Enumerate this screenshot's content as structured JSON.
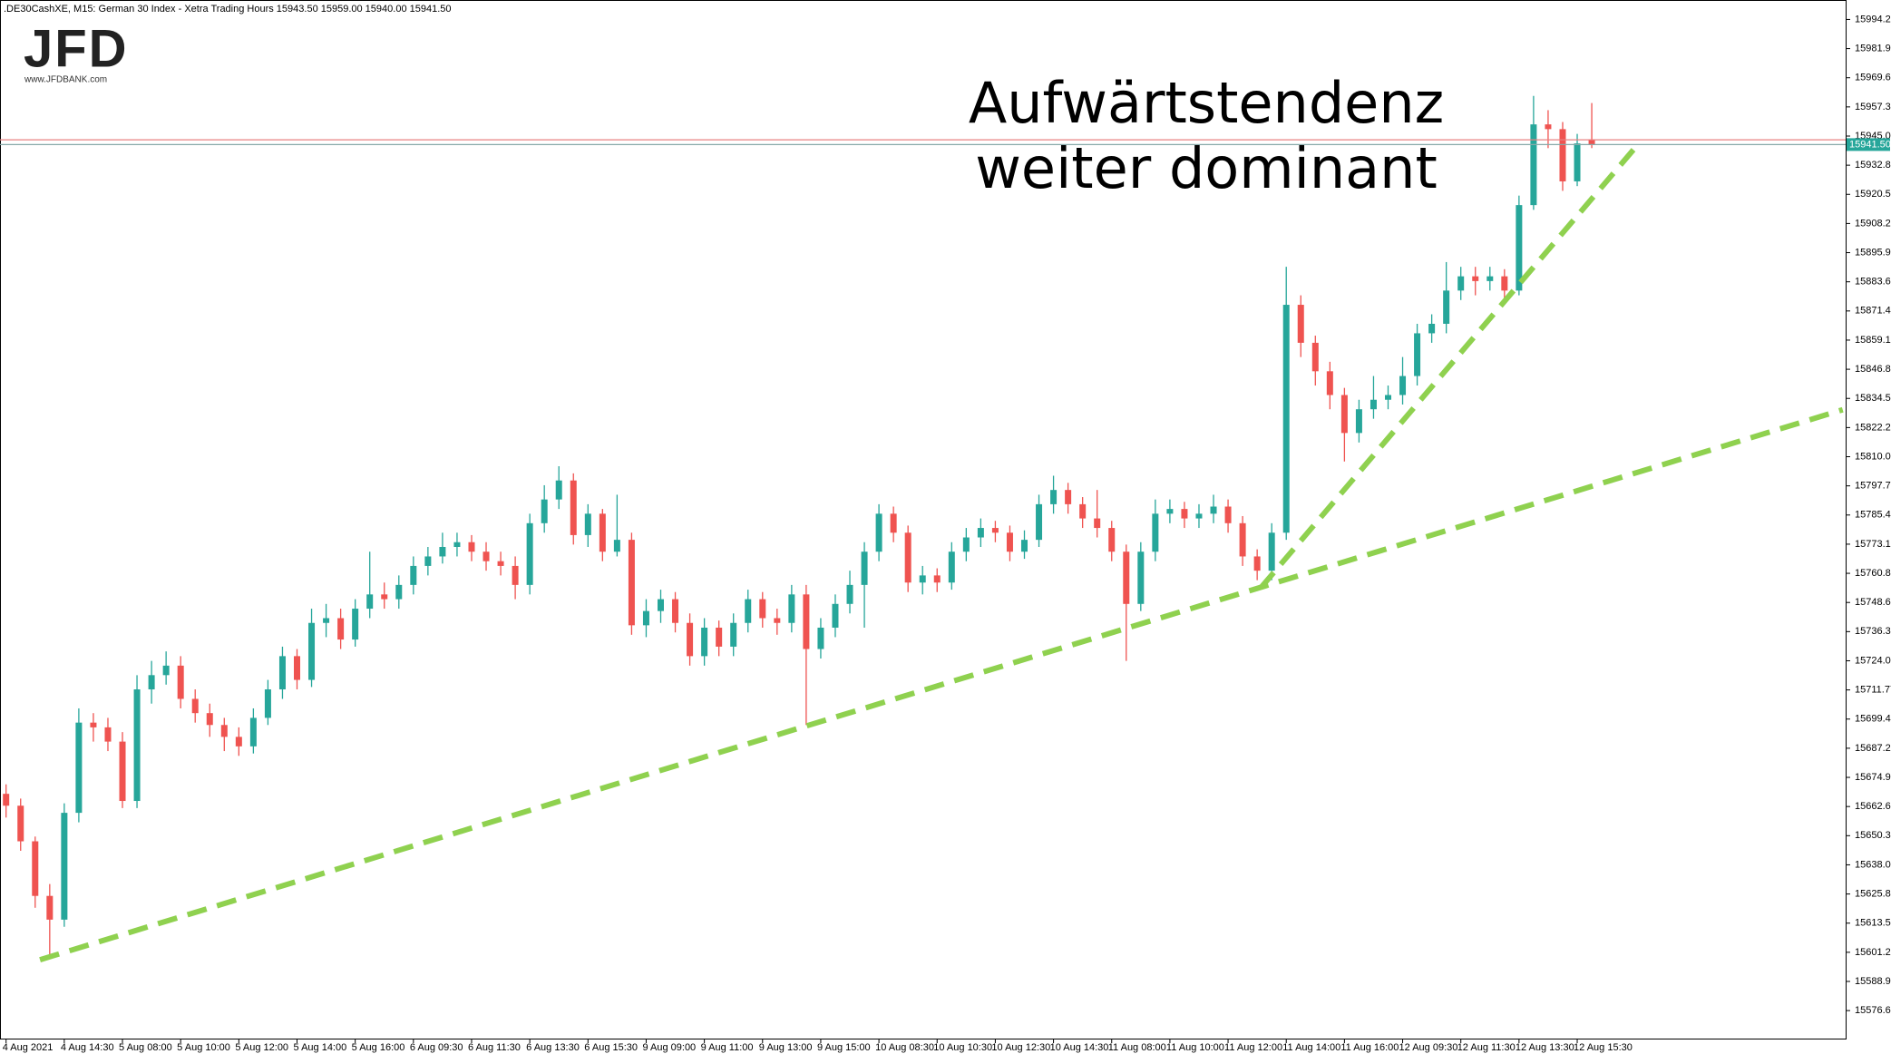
{
  "chart_data": {
    "type": "candlestick",
    "header": ".DE30CashXE, M15:  German 30 Index - Xetra Trading Hours  15943.50 15959.00 15940.00 15941.50",
    "logo": "JFD",
    "logo_sub": "www.JFDBANK.com",
    "annotation": [
      "Aufwärtstendenz",
      "weiter dominant"
    ],
    "bull_color": "#26a69a",
    "bear_color": "#ef5350",
    "ylim": [
      15564.9,
      16002.4
    ],
    "yticks": [
      15994.21,
      15981.93,
      15969.65,
      15957.37,
      15945.09,
      15932.81,
      15920.53,
      15908.25,
      15895.97,
      15883.69,
      15871.41,
      15859.13,
      15846.85,
      15834.57,
      15822.29,
      15810.01,
      15797.73,
      15785.45,
      15773.17,
      15760.89,
      15748.61,
      15736.33,
      15724.05,
      15711.77,
      15699.49,
      15687.21,
      15674.93,
      15662.65,
      15650.37,
      15638.09,
      15625.81,
      15613.53,
      15601.25,
      15588.97,
      15576.69
    ],
    "xlabels": [
      {
        "index": 0,
        "label": "4 Aug 2021"
      },
      {
        "index": 4,
        "label": "4 Aug 14:30"
      },
      {
        "index": 8,
        "label": "5 Aug 08:00"
      },
      {
        "index": 12,
        "label": "5 Aug 10:00"
      },
      {
        "index": 16,
        "label": "5 Aug 12:00"
      },
      {
        "index": 20,
        "label": "5 Aug 14:00"
      },
      {
        "index": 24,
        "label": "5 Aug 16:00"
      },
      {
        "index": 28,
        "label": "6 Aug 09:30"
      },
      {
        "index": 32,
        "label": "6 Aug 11:30"
      },
      {
        "index": 36,
        "label": "6 Aug 13:30"
      },
      {
        "index": 40,
        "label": "6 Aug 15:30"
      },
      {
        "index": 44,
        "label": "9 Aug 09:00"
      },
      {
        "index": 48,
        "label": "9 Aug 11:00"
      },
      {
        "index": 52,
        "label": "9 Aug 13:00"
      },
      {
        "index": 56,
        "label": "9 Aug 15:00"
      },
      {
        "index": 60,
        "label": "10 Aug 08:30"
      },
      {
        "index": 64,
        "label": "10 Aug 10:30"
      },
      {
        "index": 68,
        "label": "10 Aug 12:30"
      },
      {
        "index": 72,
        "label": "10 Aug 14:30"
      },
      {
        "index": 76,
        "label": "11 Aug 08:00"
      },
      {
        "index": 80,
        "label": "11 Aug 10:00"
      },
      {
        "index": 84,
        "label": "11 Aug 12:00"
      },
      {
        "index": 88,
        "label": "11 Aug 14:00"
      },
      {
        "index": 92,
        "label": "11 Aug 16:00"
      },
      {
        "index": 96,
        "label": "12 Aug 09:30"
      },
      {
        "index": 100,
        "label": "12 Aug 11:30"
      },
      {
        "index": 104,
        "label": "12 Aug 13:30"
      },
      {
        "index": 108,
        "label": "12 Aug 15:30"
      }
    ],
    "open": [
      15668,
      15663,
      15648,
      15625,
      15615,
      15660,
      15698,
      15696,
      15690,
      15665,
      15712,
      15718,
      15722,
      15708,
      15702,
      15697,
      15692,
      15688,
      15700,
      15712,
      15726,
      15716,
      15740,
      15742,
      15733,
      15746,
      15752,
      15750,
      15756,
      15764,
      15768,
      15772,
      15774,
      15770,
      15766,
      15764,
      15756,
      15782,
      15792,
      15800,
      15777,
      15786,
      15770,
      15775,
      15739,
      15745,
      15750,
      15740,
      15726,
      15738,
      15730,
      15740,
      15750,
      15742,
      15740,
      15752,
      15729,
      15738,
      15748,
      15756,
      15770,
      15786,
      15778,
      15757,
      15760,
      15757,
      15770,
      15776,
      15780,
      15778,
      15770,
      15775,
      15790,
      15796,
      15790,
      15784,
      15780,
      15770,
      15748,
      15770,
      15786,
      15788,
      15784,
      15786,
      15789,
      15782,
      15768,
      15762,
      15778,
      15874,
      15858,
      15846,
      15836,
      15820,
      15830,
      15834,
      15836,
      15844,
      15862,
      15866,
      15880,
      15886,
      15884,
      15886,
      15880,
      15916,
      15950,
      15948,
      15926,
      15943.5
    ],
    "high": [
      15672,
      15666,
      15650,
      15630,
      15664,
      15704,
      15702,
      15700,
      15694,
      15718,
      15724,
      15728,
      15726,
      15712,
      15706,
      15700,
      15696,
      15704,
      15716,
      15730,
      15729,
      15746,
      15748,
      15746,
      15750,
      15770,
      15757,
      15760,
      15768,
      15772,
      15778,
      15778,
      15777,
      15774,
      15770,
      15768,
      15786,
      15798,
      15806,
      15803,
      15790,
      15788,
      15794,
      15778,
      15750,
      15754,
      15753,
      15744,
      15742,
      15741,
      15744,
      15754,
      15753,
      15746,
      15756,
      15756,
      15742,
      15752,
      15762,
      15774,
      15790,
      15789,
      15781,
      15764,
      15763,
      15774,
      15780,
      15784,
      15783,
      15781,
      15779,
      15794,
      15802,
      15799,
      15793,
      15796,
      15783,
      15773,
      15774,
      15792,
      15792,
      15791,
      15790,
      15794,
      15792,
      15785,
      15771,
      15782,
      15890,
      15878,
      15861,
      15850,
      15839,
      15834,
      15844,
      15840,
      15852,
      15866,
      15870,
      15892,
      15890,
      15890,
      15890,
      15889,
      15920,
      15962,
      15956,
      15951,
      15946,
      15959
    ],
    "low": [
      15658,
      15644,
      15620,
      15600,
      15612,
      15656,
      15690,
      15686,
      15662,
      15662,
      15706,
      15714,
      15704,
      15698,
      15692,
      15686,
      15684,
      15685,
      15697,
      15708,
      15712,
      15713,
      15734,
      15729,
      15730,
      15742,
      15746,
      15746,
      15752,
      15760,
      15765,
      15768,
      15766,
      15762,
      15760,
      15750,
      15752,
      15778,
      15788,
      15773,
      15772,
      15766,
      15768,
      15735,
      15734,
      15740,
      15736,
      15722,
      15722,
      15726,
      15726,
      15736,
      15738,
      15735,
      15736,
      15697,
      15725,
      15734,
      15744,
      15738,
      15766,
      15774,
      15753,
      15752,
      15753,
      15754,
      15766,
      15772,
      15774,
      15766,
      15767,
      15772,
      15786,
      15786,
      15780,
      15776,
      15766,
      15724,
      15745,
      15766,
      15782,
      15780,
      15780,
      15782,
      15778,
      15764,
      15758,
      15758,
      15775,
      15852,
      15840,
      15830,
      15808,
      15816,
      15826,
      15830,
      15832,
      15840,
      15858,
      15862,
      15876,
      15878,
      15880,
      15876,
      15878,
      15914,
      15940,
      15922,
      15924,
      15940
    ],
    "close": [
      15663,
      15648,
      15625,
      15615,
      15660,
      15698,
      15696,
      15690,
      15665,
      15712,
      15718,
      15722,
      15708,
      15702,
      15697,
      15692,
      15688,
      15700,
      15712,
      15726,
      15716,
      15740,
      15742,
      15733,
      15746,
      15752,
      15750,
      15756,
      15764,
      15768,
      15772,
      15774,
      15770,
      15766,
      15764,
      15756,
      15782,
      15792,
      15800,
      15777,
      15786,
      15770,
      15775,
      15739,
      15745,
      15750,
      15740,
      15726,
      15738,
      15730,
      15740,
      15750,
      15742,
      15740,
      15752,
      15729,
      15738,
      15748,
      15756,
      15770,
      15786,
      15778,
      15757,
      15760,
      15757,
      15770,
      15776,
      15780,
      15778,
      15770,
      15775,
      15790,
      15796,
      15790,
      15784,
      15780,
      15770,
      15748,
      15770,
      15786,
      15788,
      15784,
      15786,
      15789,
      15782,
      15768,
      15762,
      15778,
      15874,
      15858,
      15846,
      15836,
      15820,
      15830,
      15834,
      15836,
      15844,
      15862,
      15866,
      15880,
      15886,
      15884,
      15886,
      15880,
      15916,
      15950,
      15948,
      15926,
      15942,
      15941.5
    ],
    "trendlines": [
      {
        "color": "#8fd14f",
        "x1": 2.33,
        "y1": 15598.1,
        "x2": 126.25,
        "y2": 15829.8
      },
      {
        "color": "#8fd14f",
        "x1": 86.25,
        "y1": 15754.8,
        "x2": 112.25,
        "y2": 15942.1
      }
    ],
    "ask_price": 15943.5,
    "ask_color": "#e88080",
    "last_price": 15941.5,
    "last_price_label": "15941.50",
    "last_color": "#26a69a"
  }
}
